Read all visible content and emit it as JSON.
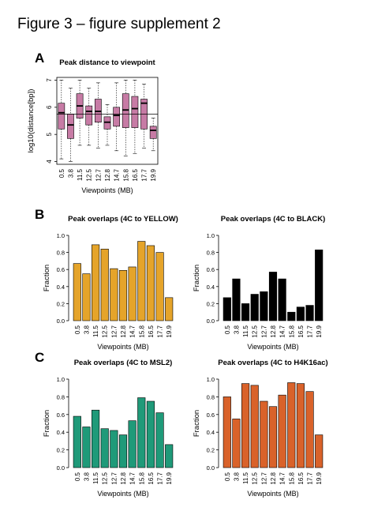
{
  "page": {
    "title": "Figure 3 – figure supplement 2"
  },
  "panels": {
    "A": "A",
    "B": "B",
    "C": "C"
  },
  "colors": {
    "box": "#c77ba5",
    "yellow": "#e5a42a",
    "black": "#000000",
    "msl2": "#1f9a79",
    "h4k16ac": "#d9622a",
    "axis": "#000000"
  },
  "chart_data": [
    {
      "id": "A",
      "type": "box",
      "title": "Peak distance to viewpoint",
      "xlabel": "Viewpoints (MB)",
      "ylabel": "log10(distance[bp])",
      "categories": [
        "0.5",
        "3.8",
        "11.5",
        "12.5",
        "12.7",
        "12.8",
        "14.7",
        "15.8",
        "16.5",
        "17.7",
        "19.9"
      ],
      "ylim": [
        3.9,
        7.1
      ],
      "yticks": [
        4,
        5,
        6,
        7
      ],
      "reference_line": 5.75,
      "boxes": [
        {
          "low": 4.1,
          "q1": 5.2,
          "median": 5.8,
          "q3": 6.15,
          "high": 7.0
        },
        {
          "low": 4.0,
          "q1": 4.85,
          "median": 5.35,
          "q3": 5.75,
          "high": 6.7
        },
        {
          "low": 4.6,
          "q1": 5.6,
          "median": 6.05,
          "q3": 6.5,
          "high": 7.0
        },
        {
          "low": 4.6,
          "q1": 5.35,
          "median": 5.85,
          "q3": 6.05,
          "high": 6.7
        },
        {
          "low": 4.5,
          "q1": 5.45,
          "median": 5.85,
          "q3": 6.3,
          "high": 6.9
        },
        {
          "low": 4.6,
          "q1": 5.2,
          "median": 5.45,
          "q3": 5.65,
          "high": 6.1
        },
        {
          "low": 4.4,
          "q1": 5.3,
          "median": 5.7,
          "q3": 6.0,
          "high": 6.9
        },
        {
          "low": 4.2,
          "q1": 5.25,
          "median": 5.9,
          "q3": 6.5,
          "high": 7.0
        },
        {
          "low": 4.3,
          "q1": 5.25,
          "median": 5.95,
          "q3": 6.4,
          "high": 7.0
        },
        {
          "low": 4.5,
          "q1": 5.2,
          "median": 6.15,
          "q3": 6.3,
          "high": 6.85
        },
        {
          "low": 4.4,
          "q1": 4.85,
          "median": 5.15,
          "q3": 5.3,
          "high": 5.6
        }
      ]
    },
    {
      "id": "B1",
      "type": "bar",
      "title": "Peak overlaps (4C to YELLOW)",
      "xlabel": "Viewpoints (MB)",
      "ylabel": "Fraction",
      "categories": [
        "0.5",
        "3.8",
        "11.5",
        "12.5",
        "12.7",
        "12.8",
        "14.7",
        "15.8",
        "16.5",
        "17.7",
        "19.9"
      ],
      "values": [
        0.67,
        0.55,
        0.89,
        0.84,
        0.61,
        0.59,
        0.63,
        0.93,
        0.88,
        0.8,
        0.27
      ],
      "ylim": [
        0,
        1.0
      ],
      "yticks": [
        "0.0",
        "0.2",
        "0.4",
        "0.6",
        "0.8",
        "1.0"
      ],
      "color": "#e5a42a"
    },
    {
      "id": "B2",
      "type": "bar",
      "title": "Peak overlaps (4C to BLACK)",
      "xlabel": "Viewpoints (MB)",
      "ylabel": "Fraction",
      "categories": [
        "0.5",
        "3.8",
        "11.5",
        "12.5",
        "12.7",
        "12.8",
        "14.7",
        "15.8",
        "16.5",
        "17.7",
        "19.9"
      ],
      "values": [
        0.27,
        0.49,
        0.2,
        0.31,
        0.34,
        0.57,
        0.49,
        0.1,
        0.16,
        0.18,
        0.83
      ],
      "ylim": [
        0,
        1.0
      ],
      "yticks": [
        "0.0",
        "0.2",
        "0.4",
        "0.6",
        "0.8",
        "1.0"
      ],
      "color": "#000000"
    },
    {
      "id": "C1",
      "type": "bar",
      "title": "Peak overlaps (4C to MSL2)",
      "xlabel": "Viewpoints (MB)",
      "ylabel": "Fraction",
      "categories": [
        "0.5",
        "3.8",
        "11.5",
        "12.5",
        "12.7",
        "12.8",
        "14.7",
        "15.8",
        "16.5",
        "17.7",
        "19.9"
      ],
      "values": [
        0.58,
        0.46,
        0.65,
        0.44,
        0.42,
        0.37,
        0.53,
        0.79,
        0.75,
        0.62,
        0.26
      ],
      "ylim": [
        0,
        1.0
      ],
      "yticks": [
        "0.0",
        "0.2",
        "0.4",
        "0.6",
        "0.8",
        "1.0"
      ],
      "color": "#1f9a79"
    },
    {
      "id": "C2",
      "type": "bar",
      "title": "Peak overlaps (4C to H4K16ac)",
      "xlabel": "Viewpoints (MB)",
      "ylabel": "Fraction",
      "categories": [
        "0.5",
        "3.8",
        "11.5",
        "12.5",
        "12.7",
        "12.8",
        "14.7",
        "15.8",
        "16.5",
        "17.7",
        "19.9"
      ],
      "values": [
        0.8,
        0.55,
        0.95,
        0.93,
        0.75,
        0.69,
        0.82,
        0.96,
        0.95,
        0.86,
        0.37
      ],
      "ylim": [
        0,
        1.0
      ],
      "yticks": [
        "0.0",
        "0.2",
        "0.4",
        "0.6",
        "0.8",
        "1.0"
      ],
      "color": "#d9622a"
    }
  ]
}
